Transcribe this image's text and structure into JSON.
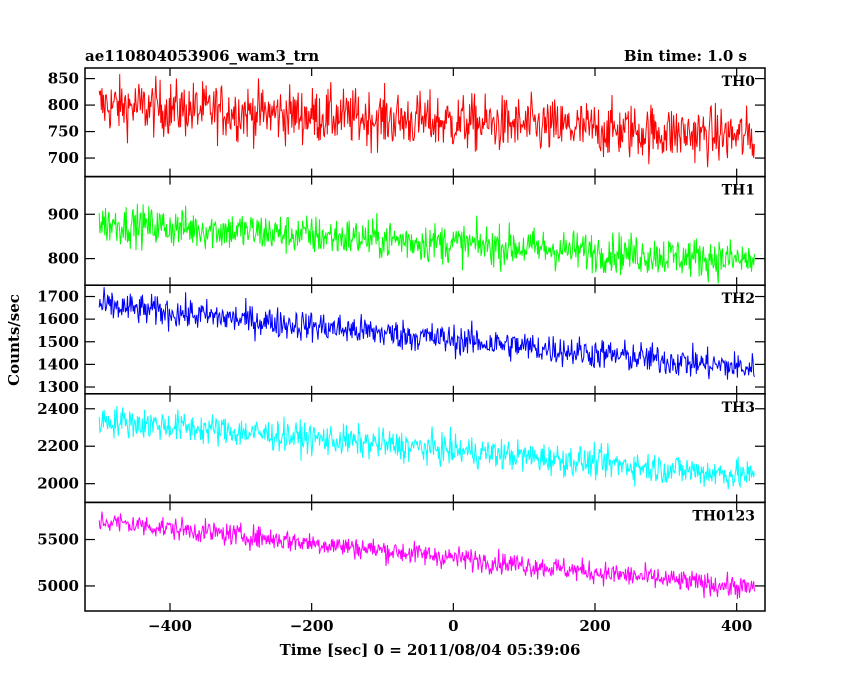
{
  "header": {
    "title": "ae110804053906_wam3_trn",
    "bin_time": "Bin time: 1.0 s"
  },
  "chart_data": {
    "type": "line",
    "xlabel": "Time [sec] 0 = 2011/08/04 05:39:06",
    "ylabel": "Counts/sec",
    "xlim": [
      -520,
      440
    ],
    "x_range": [
      -500,
      425
    ],
    "x_step": 1.0,
    "xticks": [
      -400,
      -200,
      0,
      200,
      400
    ],
    "xticklabels": [
      "−400",
      "−200",
      "0",
      "200",
      "400"
    ],
    "grid": false,
    "panels": [
      {
        "name": "TH0",
        "color": "#ff0000",
        "ylim": [
          665,
          870
        ],
        "yticks": [
          700,
          750,
          800,
          850
        ],
        "yticklabels": [
          "700",
          "750",
          "800",
          "850"
        ],
        "trend_start": 800,
        "trend_end": 740,
        "noise": 35
      },
      {
        "name": "TH1",
        "color": "#00ff00",
        "ylim": [
          740,
          985
        ],
        "yticks": [
          800,
          900
        ],
        "yticklabels": [
          "800",
          "900"
        ],
        "trend_start": 880,
        "trend_end": 795,
        "noise": 30
      },
      {
        "name": "TH2",
        "color": "#0000ff",
        "ylim": [
          1270,
          1750
        ],
        "yticks": [
          1300,
          1400,
          1500,
          1600,
          1700
        ],
        "yticklabels": [
          "1300",
          "1400",
          "1500",
          "1600",
          "1700"
        ],
        "trend_start": 1660,
        "trend_end": 1380,
        "noise": 45
      },
      {
        "name": "TH3",
        "color": "#00ffff",
        "ylim": [
          1900,
          2480
        ],
        "yticks": [
          2000,
          2200,
          2400
        ],
        "yticklabels": [
          "2000",
          "2200",
          "2400"
        ],
        "trend_start": 2340,
        "trend_end": 2040,
        "noise": 55
      },
      {
        "name": "TH0123",
        "color": "#ff00ff",
        "ylim": [
          4730,
          5900
        ],
        "yticks": [
          5000,
          5500
        ],
        "yticklabels": [
          "5000",
          "5500"
        ],
        "trend_start": 5700,
        "trend_end": 4970,
        "noise": 80
      }
    ]
  }
}
